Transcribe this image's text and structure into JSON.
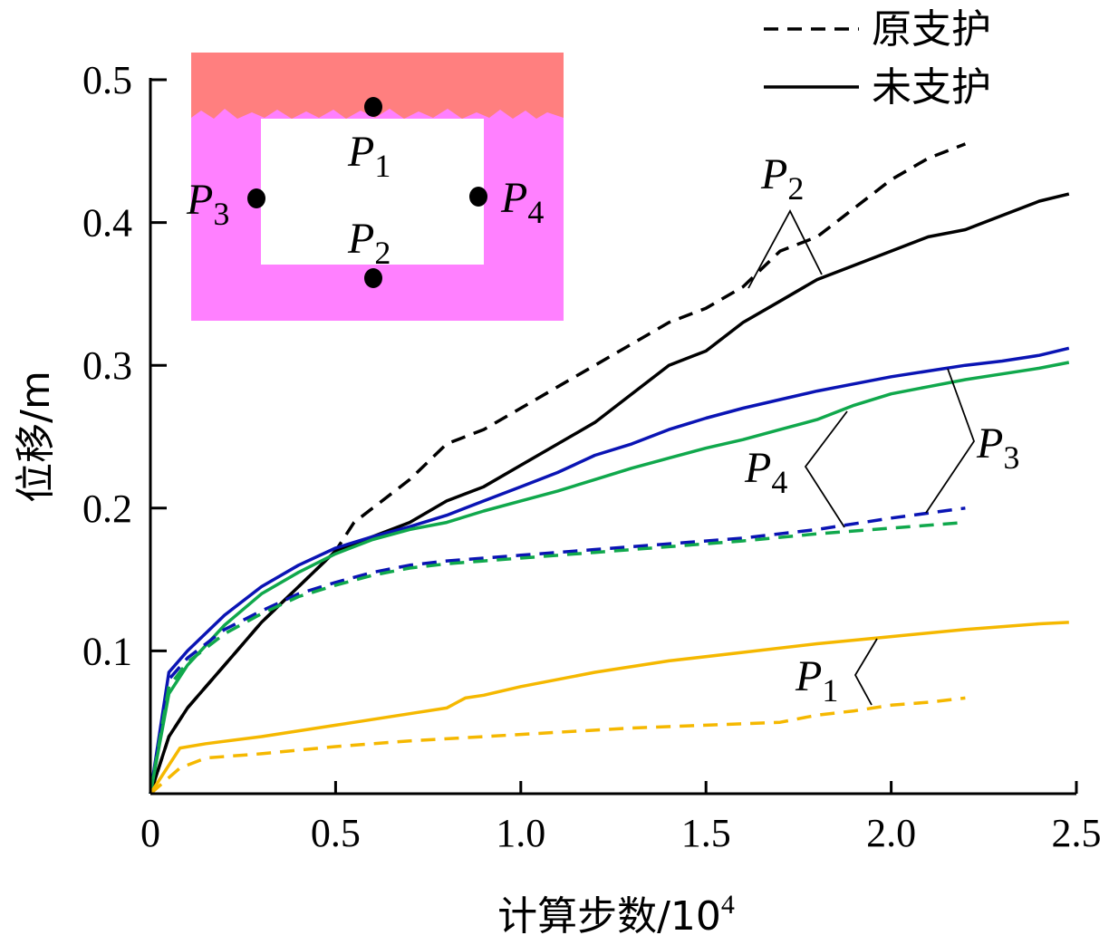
{
  "chart_data": {
    "type": "line",
    "title": "",
    "xlabel": "计算步数/10",
    "xlabel_sup": "4",
    "ylabel": "位移/m",
    "xlim": [
      0,
      2.5
    ],
    "ylim": [
      0,
      0.5
    ],
    "xticks": [
      0,
      0.5,
      1.0,
      1.5,
      2.0,
      2.5
    ],
    "xtick_labels": [
      "0",
      "0.5",
      "1.0",
      "1.5",
      "2.0",
      "2.5"
    ],
    "yticks": [
      0.1,
      0.2,
      0.3,
      0.4,
      0.5
    ],
    "ytick_labels": [
      "0.1",
      "0.2",
      "0.3",
      "0.4",
      "0.5"
    ],
    "grid": false,
    "legend": {
      "position": "top-right",
      "entries": [
        {
          "label": "原支护",
          "style": "dashed"
        },
        {
          "label": "未支护",
          "style": "solid"
        }
      ]
    },
    "colors": {
      "P1": "#f5b800",
      "P2": "#000000",
      "P3": "#0a14b4",
      "P4": "#10a84c"
    },
    "series": [
      {
        "point": "P2",
        "style": "solid",
        "x": [
          0,
          0.05,
          0.1,
          0.15,
          0.2,
          0.3,
          0.4,
          0.5,
          0.6,
          0.7,
          0.8,
          0.9,
          1.0,
          1.1,
          1.2,
          1.3,
          1.4,
          1.5,
          1.6,
          1.7,
          1.8,
          1.9,
          2.0,
          2.1,
          2.2,
          2.3,
          2.4,
          2.48
        ],
        "y": [
          0,
          0.04,
          0.06,
          0.075,
          0.09,
          0.12,
          0.145,
          0.17,
          0.18,
          0.19,
          0.205,
          0.215,
          0.23,
          0.245,
          0.26,
          0.28,
          0.3,
          0.31,
          0.33,
          0.345,
          0.36,
          0.37,
          0.38,
          0.39,
          0.395,
          0.405,
          0.415,
          0.42
        ]
      },
      {
        "point": "P2",
        "style": "dashed",
        "x": [
          0,
          0.05,
          0.1,
          0.15,
          0.2,
          0.3,
          0.4,
          0.5,
          0.55,
          0.6,
          0.7,
          0.8,
          0.9,
          1.0,
          1.1,
          1.2,
          1.3,
          1.4,
          1.5,
          1.6,
          1.7,
          1.8,
          1.9,
          2.0,
          2.1,
          2.2
        ],
        "y": [
          0,
          0.04,
          0.06,
          0.075,
          0.09,
          0.12,
          0.145,
          0.17,
          0.19,
          0.2,
          0.22,
          0.245,
          0.255,
          0.27,
          0.285,
          0.3,
          0.315,
          0.33,
          0.34,
          0.355,
          0.38,
          0.39,
          0.41,
          0.43,
          0.445,
          0.455
        ]
      },
      {
        "point": "P3",
        "style": "solid",
        "x": [
          0,
          0.05,
          0.1,
          0.2,
          0.3,
          0.4,
          0.5,
          0.6,
          0.7,
          0.8,
          0.9,
          1.0,
          1.1,
          1.2,
          1.3,
          1.4,
          1.5,
          1.6,
          1.7,
          1.8,
          1.9,
          2.0,
          2.1,
          2.2,
          2.3,
          2.4,
          2.48
        ],
        "y": [
          0,
          0.085,
          0.1,
          0.125,
          0.145,
          0.16,
          0.172,
          0.18,
          0.187,
          0.195,
          0.205,
          0.215,
          0.225,
          0.237,
          0.245,
          0.255,
          0.263,
          0.27,
          0.276,
          0.282,
          0.287,
          0.292,
          0.296,
          0.3,
          0.303,
          0.307,
          0.312
        ]
      },
      {
        "point": "P4",
        "style": "solid",
        "x": [
          0,
          0.05,
          0.1,
          0.2,
          0.3,
          0.4,
          0.5,
          0.6,
          0.7,
          0.8,
          0.9,
          1.0,
          1.1,
          1.2,
          1.3,
          1.4,
          1.5,
          1.6,
          1.7,
          1.8,
          1.9,
          2.0,
          2.1,
          2.2,
          2.3,
          2.4,
          2.48
        ],
        "y": [
          0,
          0.07,
          0.09,
          0.118,
          0.14,
          0.155,
          0.168,
          0.178,
          0.185,
          0.19,
          0.198,
          0.205,
          0.212,
          0.22,
          0.228,
          0.235,
          0.242,
          0.248,
          0.255,
          0.262,
          0.272,
          0.28,
          0.285,
          0.29,
          0.294,
          0.298,
          0.302
        ]
      },
      {
        "point": "P3",
        "style": "dashed",
        "x": [
          0,
          0.05,
          0.1,
          0.2,
          0.3,
          0.4,
          0.5,
          0.6,
          0.7,
          0.8,
          0.9,
          1.0,
          1.2,
          1.4,
          1.6,
          1.8,
          2.0,
          2.2
        ],
        "y": [
          0,
          0.08,
          0.095,
          0.115,
          0.128,
          0.14,
          0.148,
          0.155,
          0.16,
          0.163,
          0.165,
          0.167,
          0.171,
          0.175,
          0.179,
          0.185,
          0.193,
          0.2
        ]
      },
      {
        "point": "P4",
        "style": "dashed",
        "x": [
          0,
          0.05,
          0.1,
          0.2,
          0.3,
          0.4,
          0.5,
          0.6,
          0.7,
          0.8,
          0.9,
          1.0,
          1.2,
          1.4,
          1.6,
          1.8,
          2.0,
          2.2
        ],
        "y": [
          0,
          0.075,
          0.092,
          0.112,
          0.126,
          0.138,
          0.146,
          0.153,
          0.158,
          0.161,
          0.163,
          0.165,
          0.169,
          0.173,
          0.177,
          0.182,
          0.186,
          0.19
        ]
      },
      {
        "point": "P1",
        "style": "solid",
        "x": [
          0,
          0.08,
          0.15,
          0.3,
          0.5,
          0.7,
          0.8,
          0.85,
          0.9,
          1.0,
          1.2,
          1.4,
          1.6,
          1.8,
          2.0,
          2.2,
          2.4,
          2.48
        ],
        "y": [
          0,
          0.032,
          0.035,
          0.04,
          0.048,
          0.056,
          0.06,
          0.067,
          0.069,
          0.075,
          0.085,
          0.093,
          0.099,
          0.105,
          0.11,
          0.115,
          0.119,
          0.12
        ]
      },
      {
        "point": "P1",
        "style": "dashed",
        "x": [
          0,
          0.08,
          0.15,
          0.3,
          0.5,
          0.7,
          0.9,
          1.1,
          1.3,
          1.5,
          1.7,
          1.8,
          1.9,
          2.0,
          2.1,
          2.2
        ],
        "y": [
          0,
          0.018,
          0.025,
          0.028,
          0.033,
          0.037,
          0.04,
          0.043,
          0.046,
          0.048,
          0.05,
          0.055,
          0.058,
          0.062,
          0.064,
          0.067
        ]
      }
    ],
    "annotations": [
      {
        "label": "P",
        "sub": "1"
      },
      {
        "label": "P",
        "sub": "2"
      },
      {
        "label": "P",
        "sub": "3"
      },
      {
        "label": "P",
        "sub": "4"
      }
    ],
    "inset": {
      "points": [
        {
          "label": "P",
          "sub": "1"
        },
        {
          "label": "P",
          "sub": "2"
        },
        {
          "label": "P",
          "sub": "3"
        },
        {
          "label": "P",
          "sub": "4"
        }
      ],
      "colors": {
        "roof": "#ff7f7f",
        "rock": "#ff80ff",
        "opening": "#ffffff"
      }
    }
  }
}
